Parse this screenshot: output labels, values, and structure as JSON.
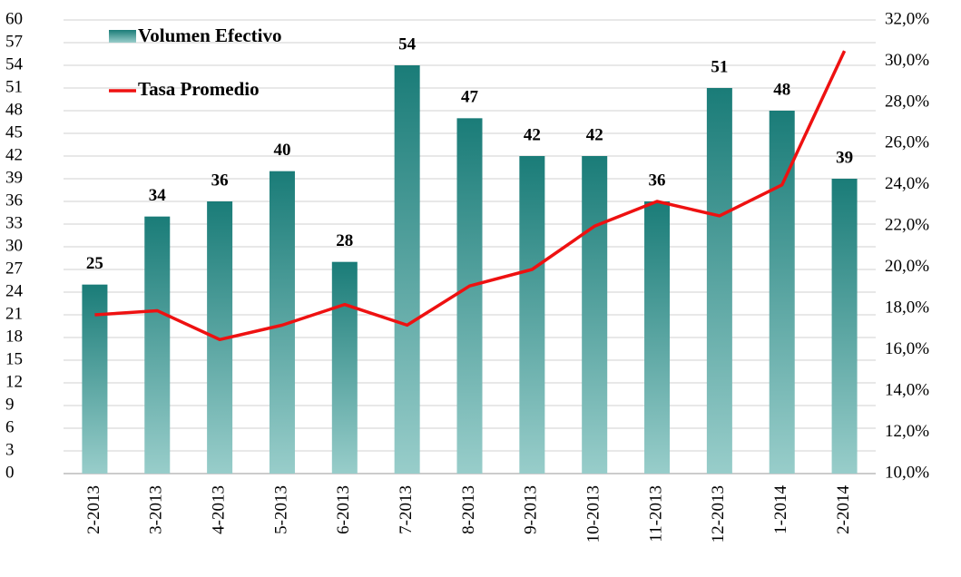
{
  "chart_data": {
    "type": "bar_line",
    "categories": [
      "2-2013",
      "3-2013",
      "4-2013",
      "5-2013",
      "6-2013",
      "7-2013",
      "8-2013",
      "9-2013",
      "10-2013",
      "11-2013",
      "12-2013",
      "1-2014",
      "2-2014"
    ],
    "series": [
      {
        "name": "Volumen Efectivo",
        "color": "#1a7c78",
        "type": "bar",
        "values": [
          25,
          34,
          36,
          40,
          28,
          54,
          47,
          42,
          42,
          36,
          51,
          48,
          39
        ]
      },
      {
        "name": "Tasa Promedio",
        "color": "#ee1111",
        "type": "line",
        "axis": "y2",
        "values": [
          17.7,
          17.9,
          16.5,
          17.2,
          18.2,
          17.2,
          19.1,
          19.9,
          22.0,
          23.2,
          22.5,
          24.0,
          30.5
        ]
      }
    ],
    "ylim": [
      0,
      60
    ],
    "yticks": [
      0,
      3,
      6,
      9,
      12,
      15,
      18,
      21,
      24,
      27,
      30,
      33,
      36,
      39,
      42,
      45,
      48,
      51,
      54,
      57,
      60
    ],
    "y2lim": [
      10,
      32
    ],
    "y2ticks": [
      {
        "value": 10,
        "label": "10,0%"
      },
      {
        "value": 12,
        "label": "12,0%"
      },
      {
        "value": 14,
        "label": "14,0%"
      },
      {
        "value": 16,
        "label": "16,0%"
      },
      {
        "value": 18,
        "label": "18,0%"
      },
      {
        "value": 20,
        "label": "20,0%"
      },
      {
        "value": 22,
        "label": "22,0%"
      },
      {
        "value": 24,
        "label": "24,0%"
      },
      {
        "value": 26,
        "label": "26,0%"
      },
      {
        "value": 28,
        "label": "28,0%"
      },
      {
        "value": 30,
        "label": "30,0%"
      },
      {
        "value": 32,
        "label": "32,0%"
      }
    ],
    "grid": true,
    "legend": "top-left"
  }
}
